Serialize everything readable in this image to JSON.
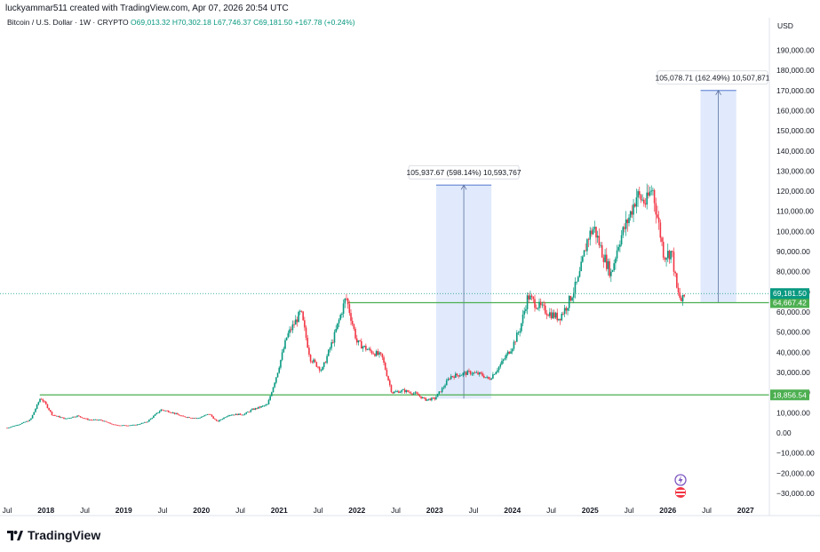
{
  "header": {
    "attribution": "luckyammar511 created with TradingView.com, Apr 07, 2026 20:54 UTC",
    "symbol": "Bitcoin / U.S. Dollar · 1W · CRYPTO",
    "open_label": "O",
    "open": "69,013.32",
    "high_label": "H",
    "high": "70,302.18",
    "low_label": "L",
    "low": "67,746.37",
    "close_label": "C",
    "close": "69,181.50",
    "change": "+167.78 (+0.24%)"
  },
  "footer": {
    "brand": "TradingView"
  },
  "colors": {
    "up": "#089981",
    "down": "#f23645",
    "level": "#4caf50",
    "measure_fill": "#dbe6fb",
    "measure_line": "#6f8fd8",
    "price_tag": "#089981"
  },
  "chart_data": {
    "type": "candlestick",
    "title": "Bitcoin / U.S. Dollar · 1W · CRYPTO",
    "currency": "USD",
    "ylim": [
      -35000,
      200000
    ],
    "y_ticks": [
      190000,
      180000,
      170000,
      160000,
      150000,
      140000,
      130000,
      120000,
      110000,
      100000,
      90000,
      80000,
      70000,
      60000,
      50000,
      40000,
      30000,
      20000,
      10000,
      0,
      -10000,
      -20000,
      -30000
    ],
    "y_tick_labels": [
      "190,000.00",
      "180,000.00",
      "170,000.00",
      "160,000.00",
      "150,000.00",
      "140,000.00",
      "130,000.00",
      "120,000.00",
      "110,000.00",
      "100,000.00",
      "90,000.00",
      "80,000.00",
      "70,000.00",
      "60,000.00",
      "50,000.00",
      "40,000.00",
      "30,000.00",
      "20,000.00",
      "10,000.00",
      "0.00",
      "−10,000.00",
      "−20,000.00",
      "−30,000.00"
    ],
    "xlim": [
      2017.5,
      2027.2
    ],
    "x_ticks": [
      {
        "t": 2017.5,
        "label": "Jul",
        "bold": false
      },
      {
        "t": 2018.0,
        "label": "2018",
        "bold": true
      },
      {
        "t": 2018.5,
        "label": "Jul",
        "bold": false
      },
      {
        "t": 2019.0,
        "label": "2019",
        "bold": true
      },
      {
        "t": 2019.5,
        "label": "Jul",
        "bold": false
      },
      {
        "t": 2020.0,
        "label": "2020",
        "bold": true
      },
      {
        "t": 2020.5,
        "label": "Jul",
        "bold": false
      },
      {
        "t": 2021.0,
        "label": "2021",
        "bold": true
      },
      {
        "t": 2021.5,
        "label": "Jul",
        "bold": false
      },
      {
        "t": 2022.0,
        "label": "2022",
        "bold": true
      },
      {
        "t": 2022.5,
        "label": "Jul",
        "bold": false
      },
      {
        "t": 2023.0,
        "label": "2023",
        "bold": true
      },
      {
        "t": 2023.5,
        "label": "Jul",
        "bold": false
      },
      {
        "t": 2024.0,
        "label": "2024",
        "bold": true
      },
      {
        "t": 2024.5,
        "label": "Jul",
        "bold": false
      },
      {
        "t": 2025.0,
        "label": "2025",
        "bold": true
      },
      {
        "t": 2025.5,
        "label": "Jul",
        "bold": false
      },
      {
        "t": 2026.0,
        "label": "2026",
        "bold": true
      },
      {
        "t": 2026.5,
        "label": "Jul",
        "bold": false
      },
      {
        "t": 2027.0,
        "label": "2027",
        "bold": true
      }
    ],
    "price_path": [
      [
        2017.5,
        2500
      ],
      [
        2017.65,
        4200
      ],
      [
        2017.8,
        6500
      ],
      [
        2017.93,
        17500
      ],
      [
        2018.0,
        14000
      ],
      [
        2018.08,
        9000
      ],
      [
        2018.25,
        7000
      ],
      [
        2018.4,
        8500
      ],
      [
        2018.55,
        6500
      ],
      [
        2018.7,
        6400
      ],
      [
        2018.87,
        4000
      ],
      [
        2018.98,
        3700
      ],
      [
        2019.15,
        3900
      ],
      [
        2019.3,
        5500
      ],
      [
        2019.48,
        11500
      ],
      [
        2019.6,
        10500
      ],
      [
        2019.75,
        8200
      ],
      [
        2019.95,
        7200
      ],
      [
        2020.1,
        9500
      ],
      [
        2020.2,
        5500
      ],
      [
        2020.35,
        9000
      ],
      [
        2020.55,
        9300
      ],
      [
        2020.65,
        11500
      ],
      [
        2020.85,
        14000
      ],
      [
        2020.97,
        29000
      ],
      [
        2021.1,
        48000
      ],
      [
        2021.28,
        60000
      ],
      [
        2021.4,
        37000
      ],
      [
        2021.55,
        31000
      ],
      [
        2021.7,
        47000
      ],
      [
        2021.86,
        67500
      ],
      [
        2022.0,
        45000
      ],
      [
        2022.15,
        41000
      ],
      [
        2022.32,
        38000
      ],
      [
        2022.45,
        20000
      ],
      [
        2022.6,
        21000
      ],
      [
        2022.75,
        19500
      ],
      [
        2022.88,
        16500
      ],
      [
        2023.0,
        17000
      ],
      [
        2023.1,
        22000
      ],
      [
        2023.2,
        28000
      ],
      [
        2023.45,
        30000
      ],
      [
        2023.6,
        29000
      ],
      [
        2023.7,
        26500
      ],
      [
        2023.85,
        34000
      ],
      [
        2024.0,
        43000
      ],
      [
        2024.1,
        52000
      ],
      [
        2024.2,
        68000
      ],
      [
        2024.3,
        64000
      ],
      [
        2024.45,
        60000
      ],
      [
        2024.6,
        57000
      ],
      [
        2024.7,
        63000
      ],
      [
        2024.85,
        76000
      ],
      [
        2024.97,
        97000
      ],
      [
        2025.05,
        102000
      ],
      [
        2025.15,
        90000
      ],
      [
        2025.27,
        79000
      ],
      [
        2025.37,
        95000
      ],
      [
        2025.5,
        107000
      ],
      [
        2025.6,
        118000
      ],
      [
        2025.72,
        114000
      ],
      [
        2025.8,
        122000
      ],
      [
        2025.88,
        104000
      ],
      [
        2025.95,
        88000
      ],
      [
        2026.05,
        90000
      ],
      [
        2026.12,
        70000
      ],
      [
        2026.18,
        65000
      ],
      [
        2026.23,
        69181
      ]
    ],
    "horizontal_levels": [
      {
        "from": 2017.92,
        "to": 2027.2,
        "value": 18856.54,
        "label": "18,856.54"
      },
      {
        "from": 2021.88,
        "to": 2027.2,
        "value": 64667.42,
        "label": "64,667.42"
      }
    ],
    "last_price": {
      "value": 69181.5,
      "label": "69,181.50"
    },
    "measurements": [
      {
        "t_start": 2023.02,
        "t_end": 2023.73,
        "from": 17000,
        "to": 123000,
        "label": "105,937.67 (598.14%) 10,593,767"
      },
      {
        "t_start": 2026.42,
        "t_end": 2026.88,
        "from": 64667,
        "to": 170000,
        "label": "105,078.71 (162.49%) 10,507,871"
      }
    ]
  }
}
